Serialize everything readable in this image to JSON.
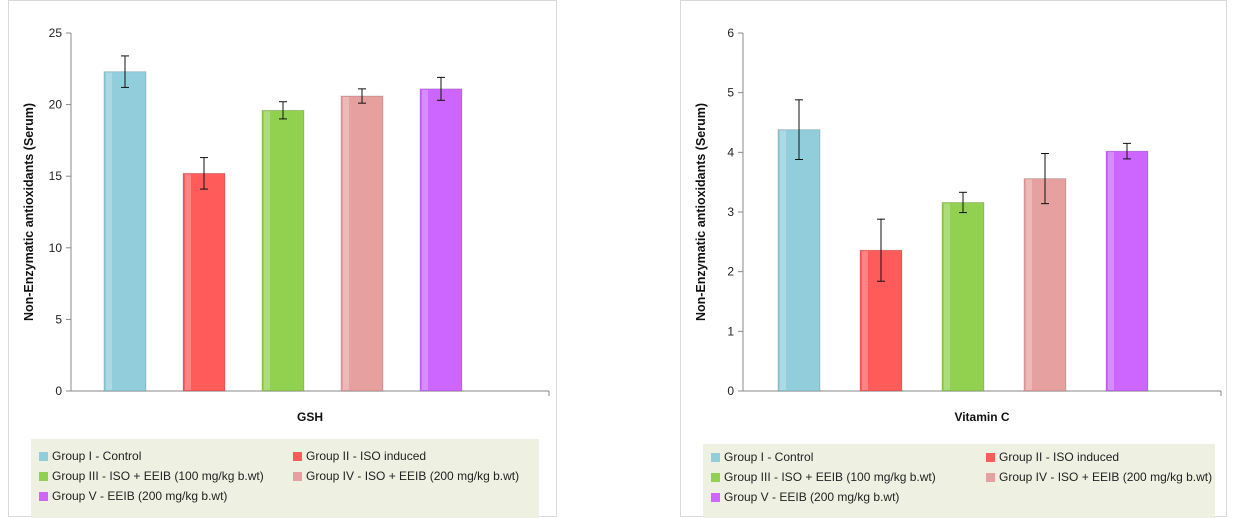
{
  "chart_data": [
    {
      "type": "bar",
      "xlabel": "GSH",
      "ylabel": "Non-Enzymatic antioxidants (Serum)",
      "ylim": [
        0,
        25
      ],
      "yticks": [
        0,
        5,
        10,
        15,
        20,
        25
      ],
      "grid": false,
      "legend_position": "bottom",
      "series": [
        {
          "name": "Group I - Control",
          "color": "#92cddc",
          "value": 22.3,
          "error": 1.1
        },
        {
          "name": "Group II - ISO induced",
          "color": "#ff5b5b",
          "value": 15.2,
          "error": 1.1
        },
        {
          "name": "Group III - ISO + EEIB (100 mg/kg b.wt)",
          "color": "#92d050",
          "value": 19.6,
          "error": 0.6
        },
        {
          "name": "Group IV - ISO + EEIB (200 mg/kg b.wt)",
          "color": "#e6a0a0",
          "value": 20.6,
          "error": 0.5
        },
        {
          "name": "Group V - EEIB (200 mg/kg b.wt)",
          "color": "#cc66ff",
          "value": 21.1,
          "error": 0.8
        }
      ]
    },
    {
      "type": "bar",
      "xlabel": "Vitamin C",
      "ylabel": "Non-Enzymatic antioxidants (Serum)",
      "ylim": [
        0,
        6
      ],
      "yticks": [
        0,
        1,
        2,
        3,
        4,
        5,
        6
      ],
      "grid": false,
      "legend_position": "bottom",
      "series": [
        {
          "name": "Group I - Control",
          "color": "#92cddc",
          "value": 4.38,
          "error": 0.5
        },
        {
          "name": "Group II - ISO induced",
          "color": "#ff5b5b",
          "value": 2.36,
          "error": 0.52
        },
        {
          "name": "Group III - ISO + EEIB (100 mg/kg b.wt)",
          "color": "#92d050",
          "value": 3.16,
          "error": 0.17
        },
        {
          "name": "Group IV - ISO + EEIB (200 mg/kg b.wt)",
          "color": "#e6a0a0",
          "value": 3.56,
          "error": 0.42
        },
        {
          "name": "Group V - EEIB (200 mg/kg b.wt)",
          "color": "#cc66ff",
          "value": 4.02,
          "error": 0.13
        }
      ]
    }
  ]
}
